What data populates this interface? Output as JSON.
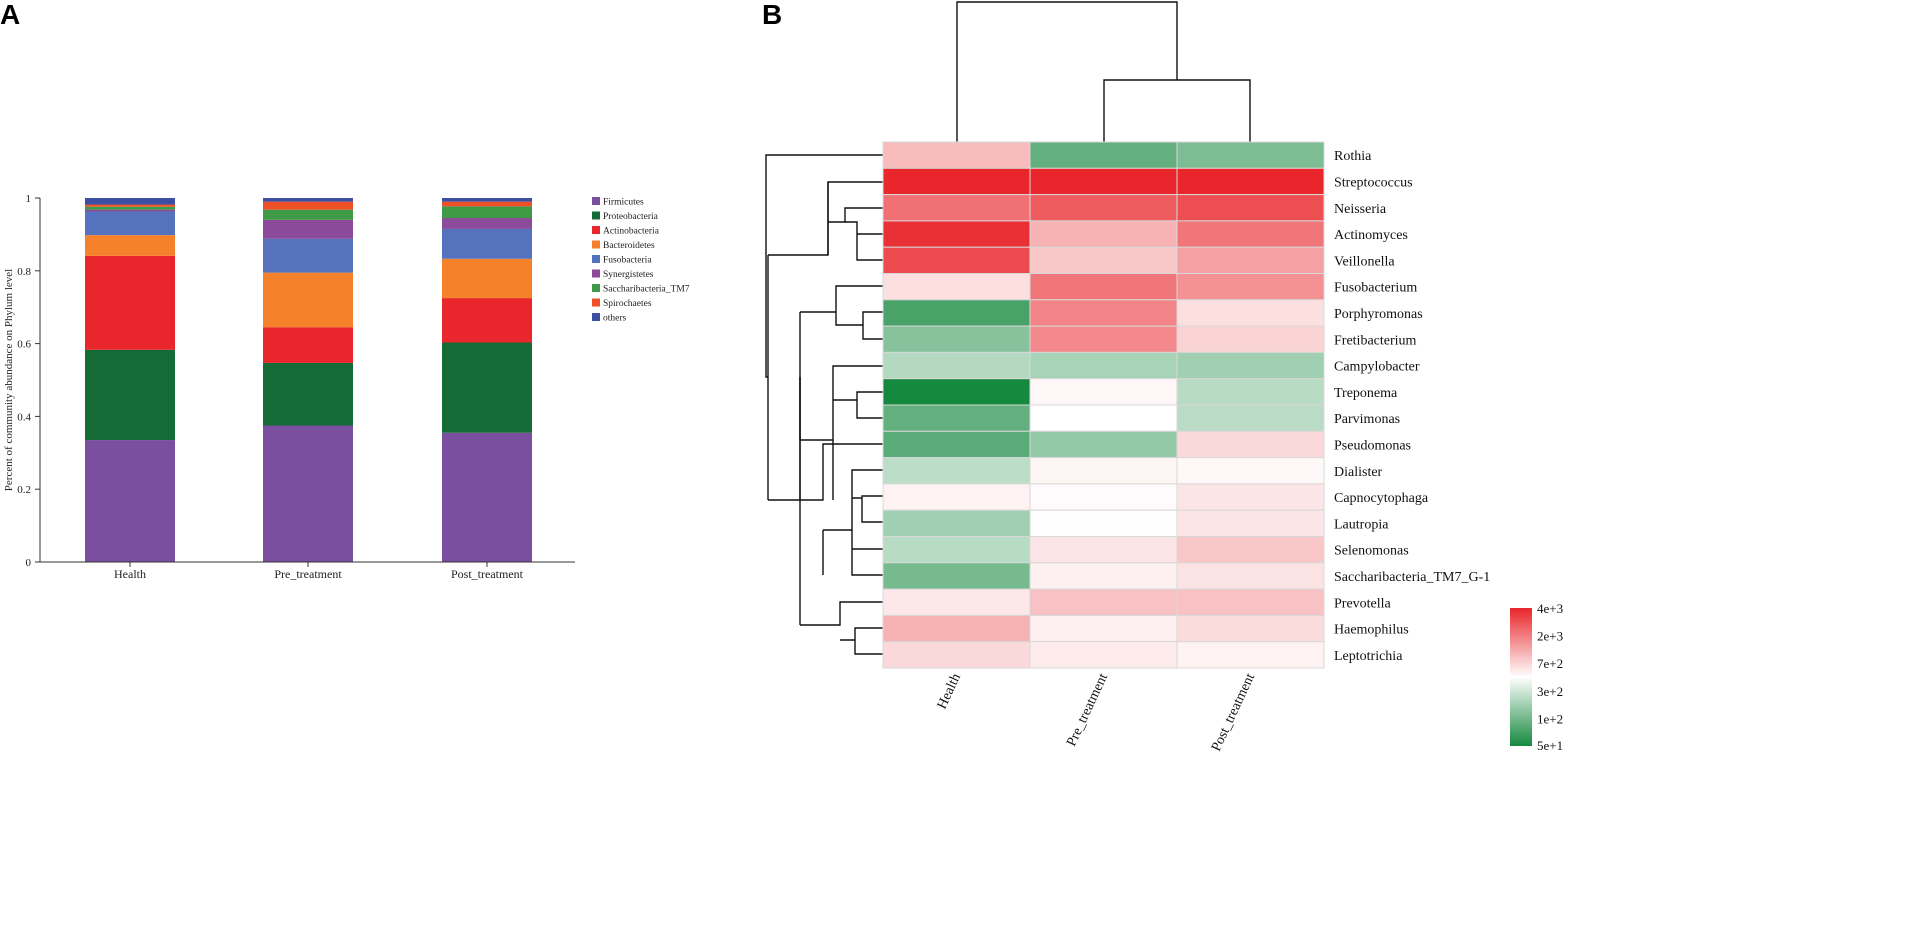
{
  "panel_labels": {
    "a": "A",
    "b": "B"
  },
  "chart_data": [
    {
      "type": "bar",
      "stacked": true,
      "title": "",
      "xlabel": "",
      "ylabel": "Percent of community abundance on Phylum level",
      "ylim": [
        0,
        1
      ],
      "yticks": [
        0,
        0.2,
        0.4,
        0.6,
        0.8,
        1
      ],
      "ytick_labels": [
        "0",
        "0.2",
        "0.4",
        "0.6",
        "0.8",
        "1"
      ],
      "categories": [
        "Health",
        "Pre_treatment",
        "Post_treatment"
      ],
      "legend_position": "right",
      "series": [
        {
          "name": "Firmicutes",
          "color": "#7B4FA0",
          "values": [
            0.335,
            0.375,
            0.355
          ]
        },
        {
          "name": "Proteobacteria",
          "color": "#156B35",
          "values": [
            0.248,
            0.172,
            0.248
          ]
        },
        {
          "name": "Actinobacteria",
          "color": "#E8262B",
          "values": [
            0.258,
            0.098,
            0.122
          ]
        },
        {
          "name": "Bacteroidetes",
          "color": "#F5822B",
          "values": [
            0.057,
            0.15,
            0.108
          ]
        },
        {
          "name": "Fusobacteria",
          "color": "#5472BE",
          "values": [
            0.065,
            0.093,
            0.082
          ]
        },
        {
          "name": "Synergistetes",
          "color": "#8B4A9A",
          "values": [
            0.005,
            0.052,
            0.03
          ]
        },
        {
          "name": "Saccharibacteria_TM7",
          "color": "#3E9A44",
          "values": [
            0.008,
            0.028,
            0.032
          ]
        },
        {
          "name": "Spirochaetes",
          "color": "#EE5127",
          "values": [
            0.006,
            0.022,
            0.013
          ]
        },
        {
          "name": "others",
          "color": "#3D4FA5",
          "values": [
            0.018,
            0.01,
            0.01
          ]
        }
      ]
    },
    {
      "type": "heatmap",
      "title": "",
      "columns": [
        "Health",
        "Pre_treatment",
        "Post_treatment"
      ],
      "rows": [
        "Rothia",
        "Streptococcus",
        "Neisseria",
        "Actinomyces",
        "Veillonella",
        "Fusobacterium",
        "Porphyromonas",
        "Fretibacterium",
        "Campylobacter",
        "Treponema",
        "Parvimonas",
        "Pseudomonas",
        "Dialister",
        "Capnocytophaga",
        "Lautropia",
        "Selenomonas",
        "Saccharibacteria_TM7_G-1",
        "Prevotella",
        "Haemophilus",
        "Leptotrichia"
      ],
      "values": [
        [
          1200,
          120,
          160
        ],
        [
          4000,
          4000,
          4000
        ],
        [
          2200,
          2600,
          2900
        ],
        [
          3700,
          1300,
          2100
        ],
        [
          3000,
          1100,
          1500
        ],
        [
          900,
          2100,
          1700
        ],
        [
          90,
          1900,
          900
        ],
        [
          180,
          1800,
          1000
        ],
        [
          300,
          260,
          240
        ],
        [
          50,
          750,
          310
        ],
        [
          120,
          700,
          320
        ],
        [
          110,
          210,
          950
        ],
        [
          330,
          760,
          740
        ],
        [
          780,
          720,
          860
        ],
        [
          240,
          690,
          860
        ],
        [
          310,
          860,
          1100
        ],
        [
          150,
          790,
          880
        ],
        [
          840,
          1150,
          1150
        ],
        [
          1300,
          800,
          930
        ],
        [
          960,
          820,
          780
        ]
      ],
      "colorbar": {
        "tick_labels": [
          "4e+3",
          "2e+3",
          "7e+2",
          "3e+2",
          "1e+2",
          "5e+1"
        ],
        "colors": {
          "high": "#E8262B",
          "mid": "#FFFFFF",
          "low": "#15893E"
        }
      },
      "dendrogram_columns": "Health joins (Pre_treatment, Post_treatment)",
      "dendrogram_rows": "Rothia outgroup; hierarchical clusters of remaining genera"
    }
  ]
}
